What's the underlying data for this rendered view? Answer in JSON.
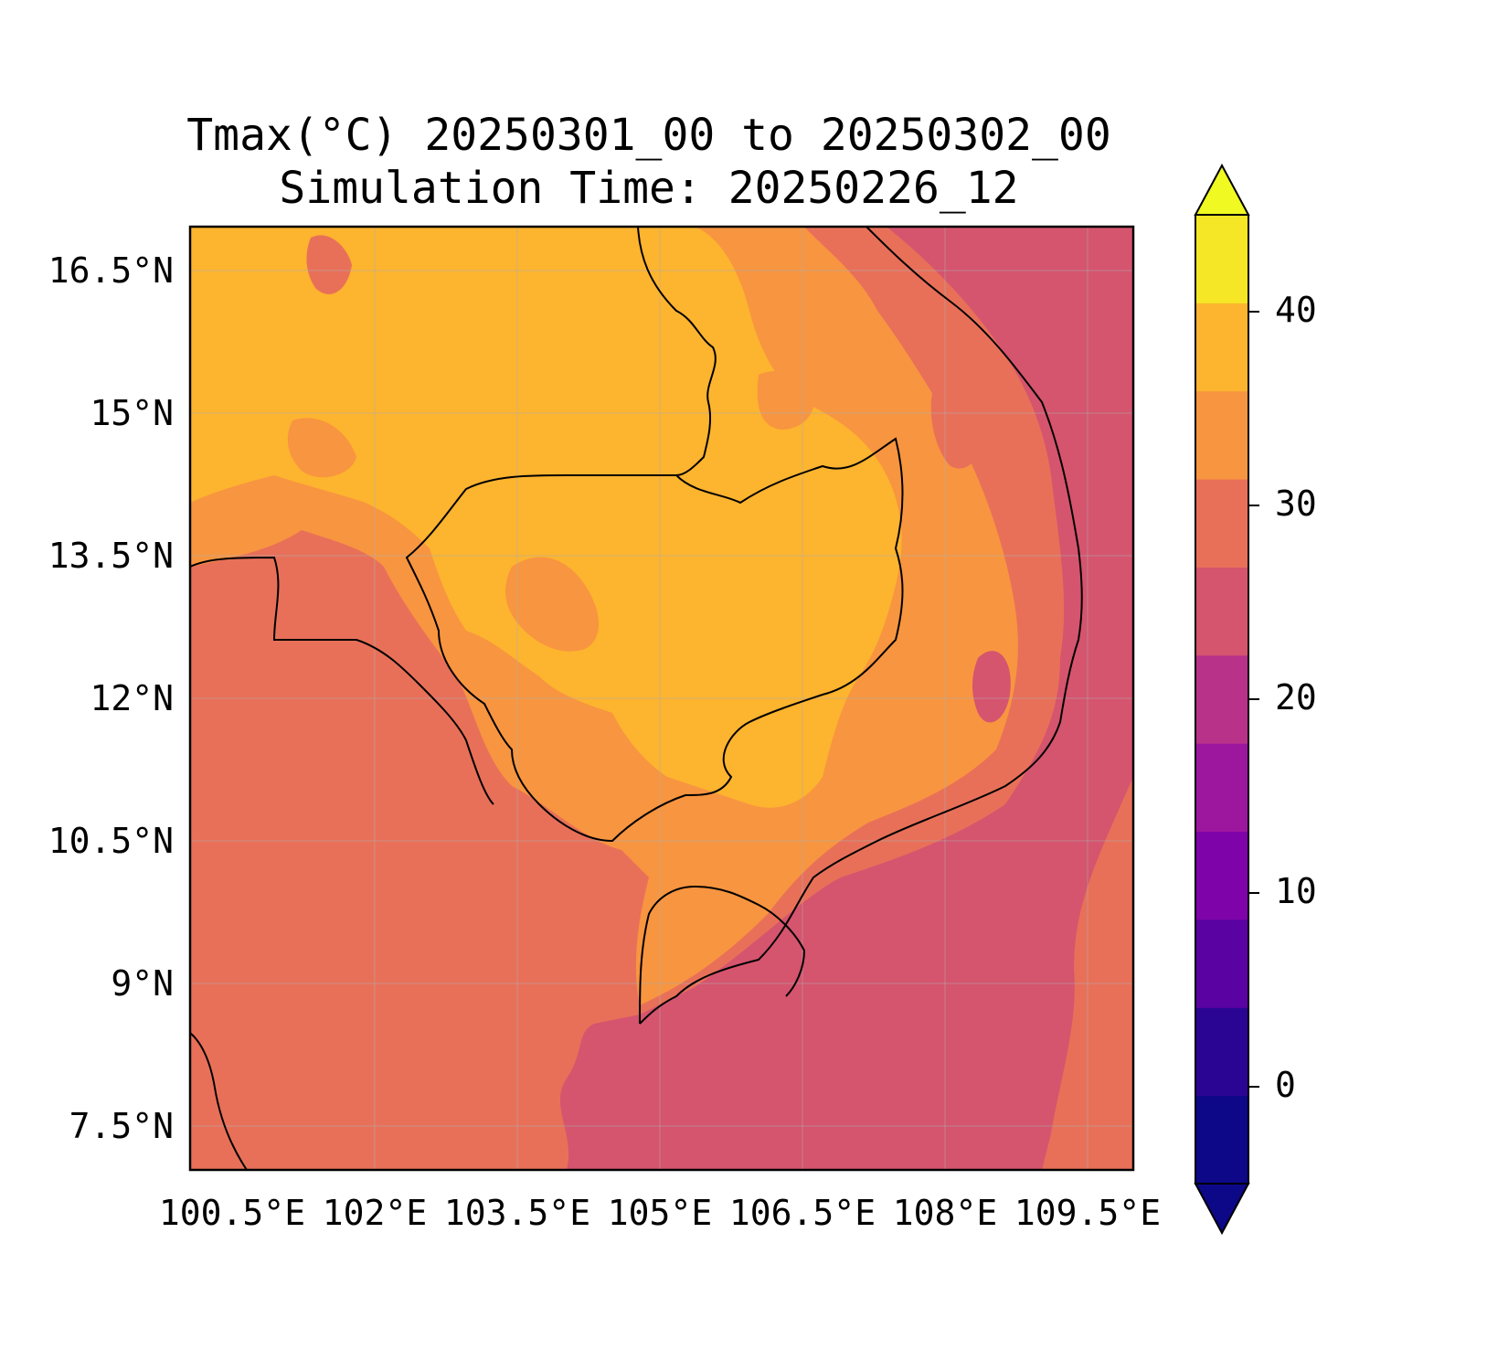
{
  "title": {
    "line1": "Tmax(°C) 20250301_00 to 20250302_00",
    "line2": "Simulation Time: 20250226_12"
  },
  "map": {
    "lat_ticks": [
      "16.5°N",
      "15°N",
      "13.5°N",
      "12°N",
      "10.5°N",
      "9°N",
      "7.5°N"
    ],
    "lon_ticks": [
      "100.5°E",
      "102°E",
      "103.5°E",
      "105°E",
      "106.5°E",
      "108°E",
      "109.5°E"
    ],
    "grid": true
  },
  "colorbar": {
    "ticks": [
      "40",
      "30",
      "20",
      "10",
      "0"
    ],
    "levels": [
      -5,
      0,
      5,
      10,
      15,
      20,
      25,
      30,
      35,
      40,
      45
    ],
    "colors": [
      "#0d0887",
      "#2a0593",
      "#5b02a3",
      "#7e03a8",
      "#9c179e",
      "#b83289",
      "#d5546e",
      "#e87059",
      "#f89540",
      "#fdb42f",
      "#f5e726"
    ],
    "extend_under_color": "#0d0887",
    "extend_over_color": "#f0f921"
  }
}
